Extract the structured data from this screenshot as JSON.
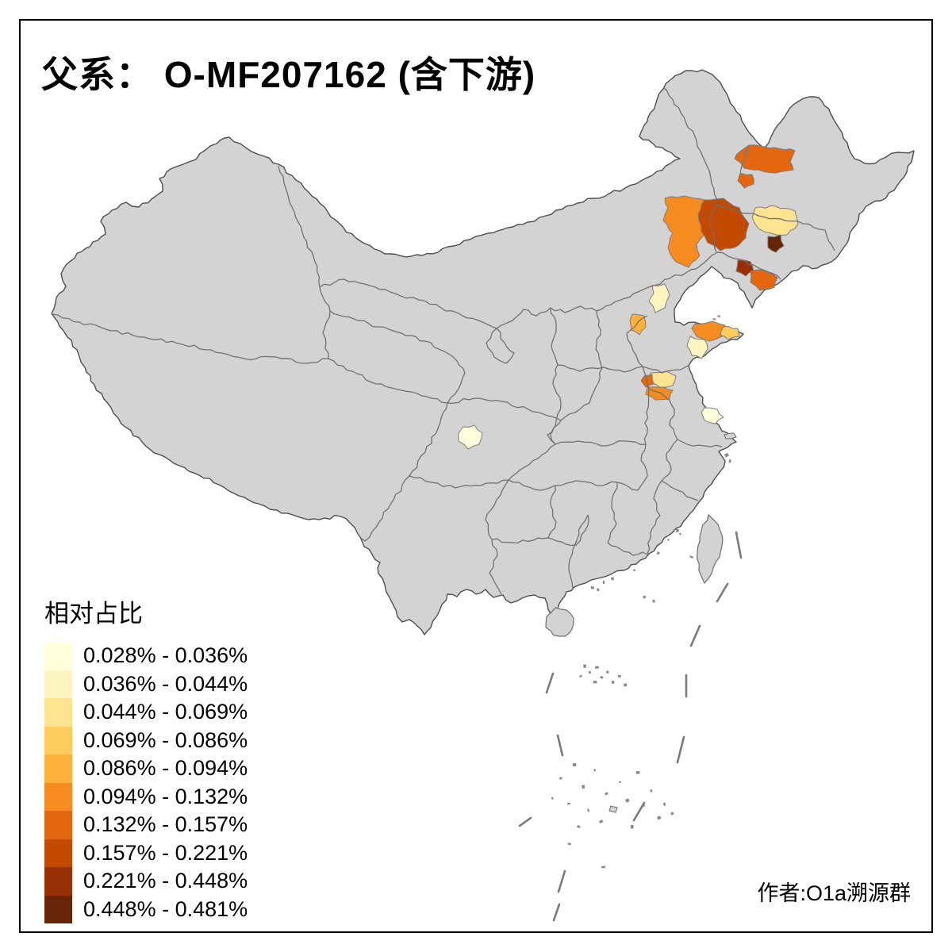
{
  "title": "父系： O-MF207162 (含下游)",
  "credit": "作者:O1a溯源群",
  "legend": {
    "title": "相对占比",
    "classes": [
      {
        "label": "0.028% - 0.036%",
        "color": "#FFFFDC"
      },
      {
        "label": "0.036% - 0.044%",
        "color": "#FDF5BF"
      },
      {
        "label": "0.044% - 0.069%",
        "color": "#FEE391"
      },
      {
        "label": "0.069% - 0.086%",
        "color": "#FDCC5C"
      },
      {
        "label": "0.086% - 0.094%",
        "color": "#FDB03A"
      },
      {
        "label": "0.094% - 0.132%",
        "color": "#F68C20"
      },
      {
        "label": "0.132% - 0.157%",
        "color": "#E4660F"
      },
      {
        "label": "0.157% - 0.221%",
        "color": "#C34A02"
      },
      {
        "label": "0.221% - 0.448%",
        "color": "#983005"
      },
      {
        "label": "0.448% - 0.481%",
        "color": "#662506"
      }
    ]
  },
  "map": {
    "sea_color": "#FFFFFF",
    "base_fill": "#D3D3D3",
    "outline_color": "#4F4F4F",
    "province_border_color": "#6E6E6E",
    "region_border_color": "#7D7D7D",
    "regions": [
      {
        "id": "northeast-heilongjiang-west",
        "class_index": 6
      },
      {
        "id": "inner-mongolia-east-bright",
        "class_index": 5
      },
      {
        "id": "inner-mongolia-east-dark",
        "class_index": 7
      },
      {
        "id": "jilin-west-pale",
        "class_index": 2
      },
      {
        "id": "jilin-central-darkest",
        "class_index": 9
      },
      {
        "id": "liaoning-central-dark",
        "class_index": 8
      },
      {
        "id": "liaoning-south-coast",
        "class_index": 6
      },
      {
        "id": "beijing",
        "class_index": 1
      },
      {
        "id": "hebei-southwest",
        "class_index": 4
      },
      {
        "id": "shandong-northeast",
        "class_index": 5
      },
      {
        "id": "shandong-east-tip",
        "class_index": 3
      },
      {
        "id": "shandong-qingdao",
        "class_index": 1
      },
      {
        "id": "jiangsu-northwest-pale",
        "class_index": 2
      },
      {
        "id": "jiangsu-northwest-deep",
        "class_index": 6
      },
      {
        "id": "jiangsu-northwest-orange",
        "class_index": 5
      },
      {
        "id": "jiangsu-coast-pale",
        "class_index": 0
      },
      {
        "id": "sichuan-chengdu-pale",
        "class_index": 0
      }
    ]
  }
}
